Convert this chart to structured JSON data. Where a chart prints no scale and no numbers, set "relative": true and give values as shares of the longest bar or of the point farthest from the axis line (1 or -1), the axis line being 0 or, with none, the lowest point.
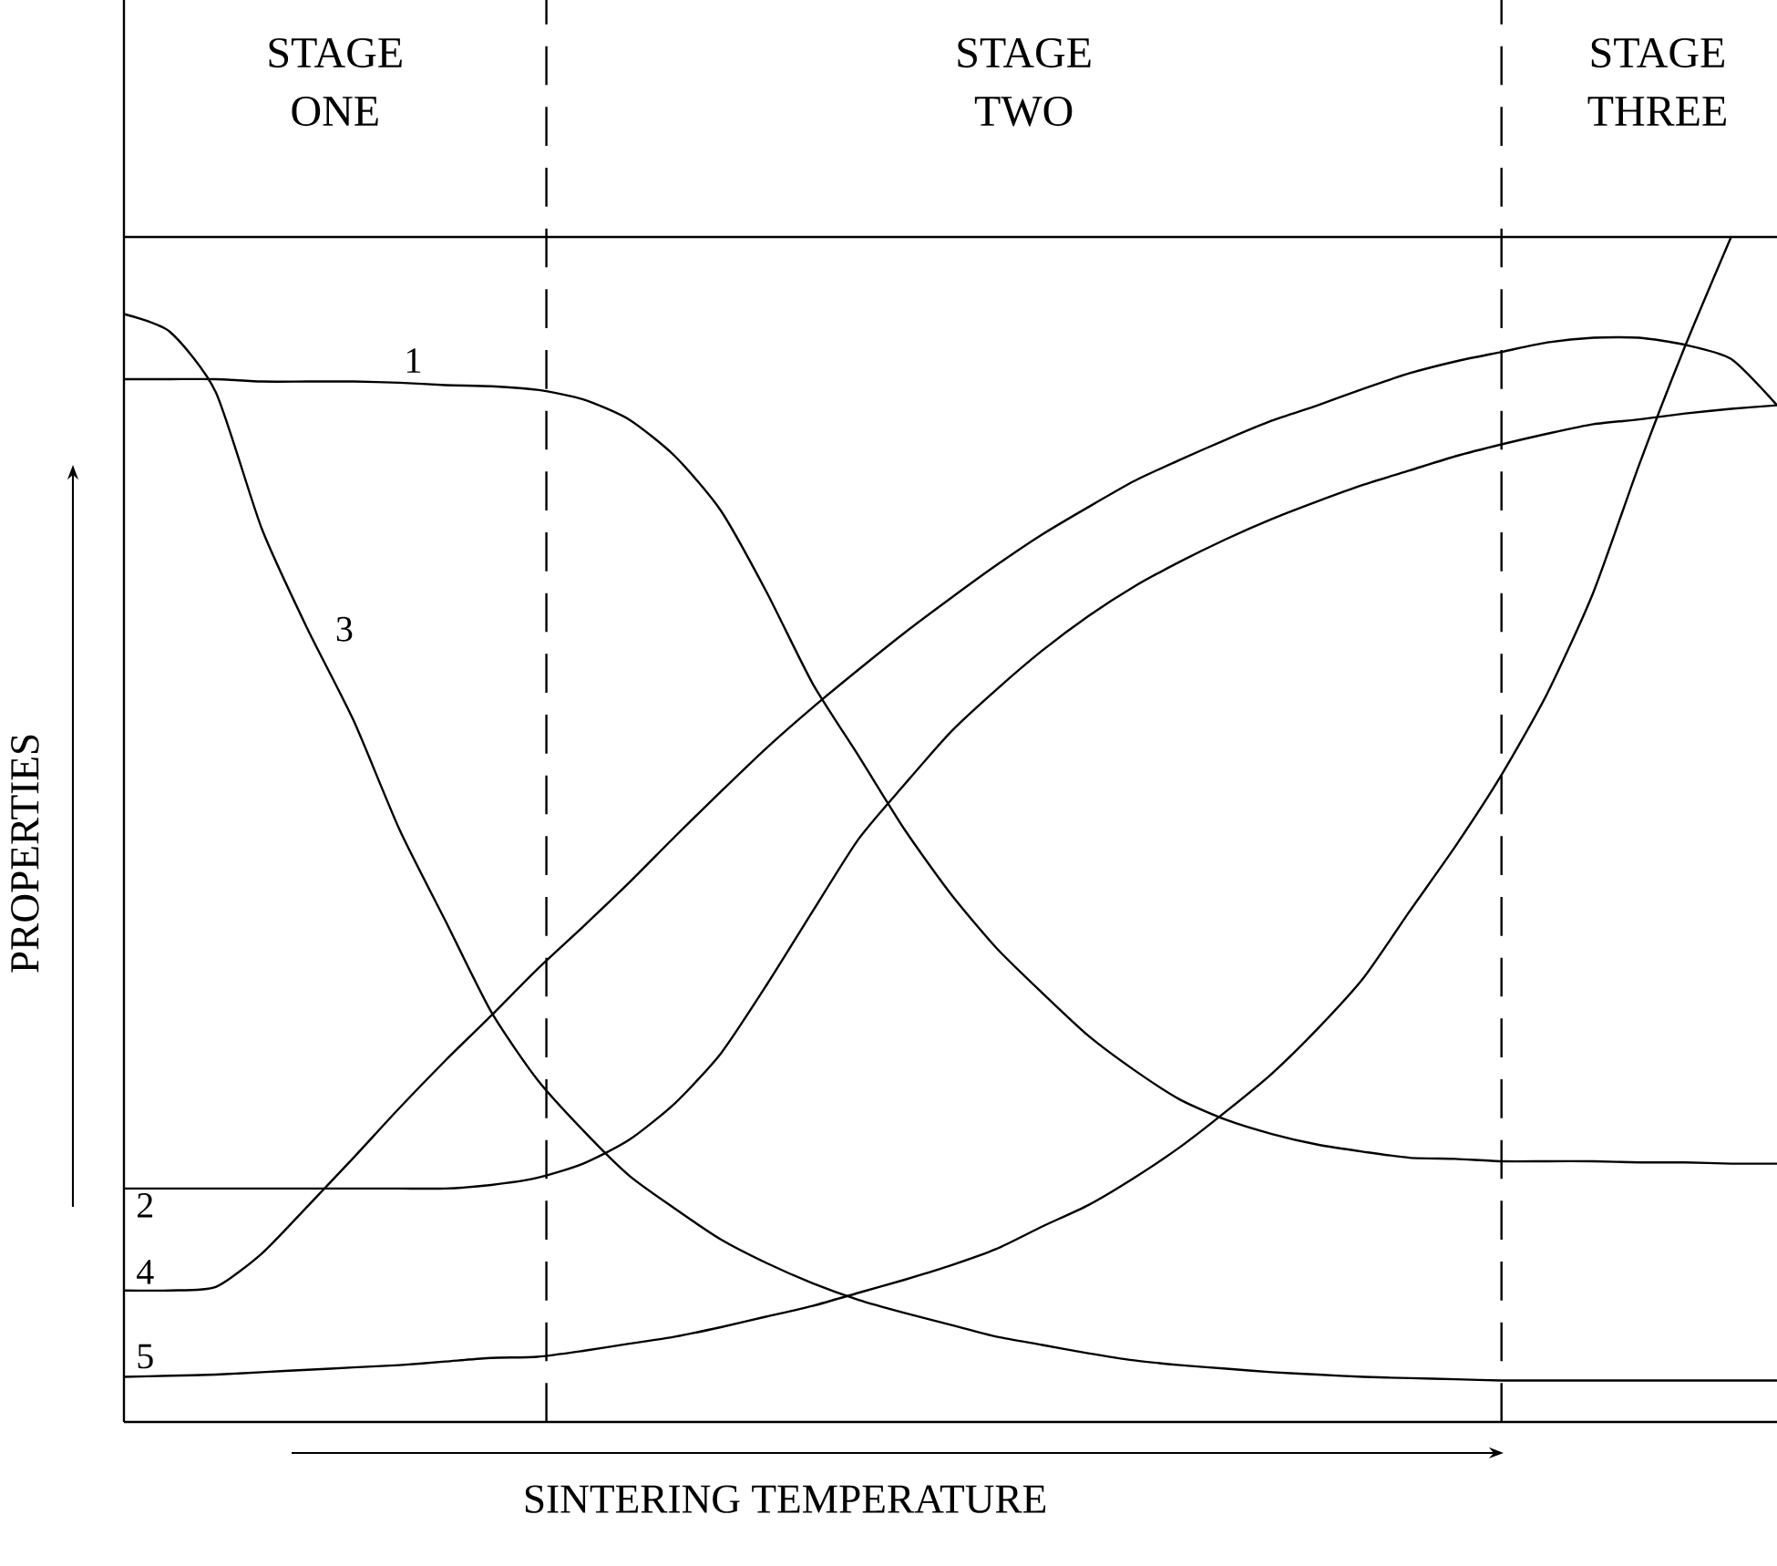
{
  "chart_data": {
    "type": "line",
    "relative": true,
    "xlabel": "SINTERING TEMPERATURE",
    "ylabel": "PROPERTIES",
    "categories": [
      null,
      null,
      null,
      null,
      null,
      null,
      null,
      null,
      null,
      null,
      null,
      null,
      null,
      null,
      null,
      null,
      null,
      null,
      null,
      null,
      null,
      null,
      null,
      null,
      null,
      null,
      null,
      null,
      null,
      null,
      null,
      null,
      null,
      null,
      null,
      null,
      null
    ],
    "series": [
      {
        "name": "1",
        "color": "#000000",
        "values": [
          0.88,
          0.88,
          0.88,
          0.878,
          0.878,
          0.878,
          0.877,
          0.875,
          0.874,
          0.871,
          0.863,
          0.846,
          0.815,
          0.769,
          0.7,
          0.623,
          0.562,
          0.5,
          0.446,
          0.4,
          0.362,
          0.326,
          0.297,
          0.272,
          0.255,
          0.243,
          0.234,
          0.228,
          0.223,
          0.222,
          0.22,
          0.22,
          0.22,
          0.219,
          0.219,
          0.218,
          0.218
        ]
      },
      {
        "name": "2",
        "color": "#000000",
        "values": [
          0.197,
          0.197,
          0.197,
          0.197,
          0.197,
          0.197,
          0.197,
          0.197,
          0.2,
          0.206,
          0.218,
          0.238,
          0.269,
          0.311,
          0.369,
          0.431,
          0.492,
          0.538,
          0.582,
          0.618,
          0.651,
          0.68,
          0.705,
          0.726,
          0.745,
          0.762,
          0.777,
          0.791,
          0.803,
          0.815,
          0.825,
          0.834,
          0.842,
          0.846,
          0.851,
          0.855,
          0.858
        ]
      },
      {
        "name": "3",
        "color": "#000000",
        "values": [
          0.935,
          0.92,
          0.869,
          0.754,
          0.669,
          0.592,
          0.5,
          0.423,
          0.346,
          0.289,
          0.246,
          0.208,
          0.18,
          0.154,
          0.134,
          0.117,
          0.103,
          0.092,
          0.082,
          0.072,
          0.065,
          0.058,
          0.052,
          0.048,
          0.045,
          0.042,
          0.04,
          0.038,
          0.037,
          0.036,
          0.035,
          0.035,
          0.035,
          0.035,
          0.035,
          0.035,
          0.035
        ]
      },
      {
        "name": "4",
        "color": "#000000",
        "values": [
          0.111,
          0.111,
          0.114,
          0.142,
          0.182,
          0.223,
          0.265,
          0.305,
          0.343,
          0.382,
          0.418,
          0.455,
          0.494,
          0.532,
          0.569,
          0.603,
          0.635,
          0.666,
          0.695,
          0.723,
          0.749,
          0.772,
          0.794,
          0.812,
          0.829,
          0.845,
          0.858,
          0.872,
          0.885,
          0.895,
          0.903,
          0.911,
          0.915,
          0.915,
          0.909,
          0.897,
          0.858
        ]
      },
      {
        "name": "5",
        "color": "#000000",
        "values": [
          0.038,
          0.039,
          0.04,
          0.042,
          0.044,
          0.046,
          0.048,
          0.051,
          0.054,
          0.055,
          0.06,
          0.066,
          0.072,
          0.08,
          0.089,
          0.098,
          0.109,
          0.12,
          0.132,
          0.146,
          0.165,
          0.183,
          0.206,
          0.232,
          0.262,
          0.294,
          0.332,
          0.375,
          0.431,
          0.486,
          0.546,
          0.615,
          0.7,
          0.808,
          0.908,
          1.0,
          null
        ]
      }
    ],
    "ref_lines": [
      {
        "axis": "y",
        "value": 1,
        "line_style": "solid"
      }
    ],
    "annotations": [
      "STAGE ONE",
      "STAGE TWO",
      "STAGE THREE"
    ],
    "line_style": "solid",
    "marker": "none"
  }
}
